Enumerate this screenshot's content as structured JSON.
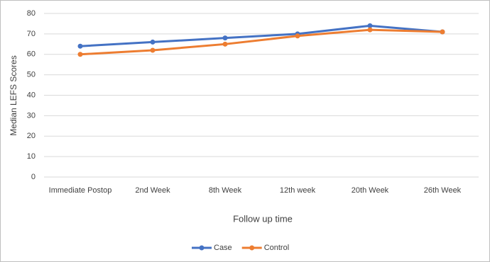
{
  "chart_data": {
    "type": "line",
    "x_label": "Follow up time",
    "y_label": "Median LEFS Scores",
    "categories": [
      "Immediate Postop",
      "2nd Week",
      "8th Week",
      "12th week",
      "20th Week",
      "26th Week"
    ],
    "series": [
      {
        "name": "Case",
        "color": "#4472c4",
        "values": [
          64,
          66,
          68,
          70,
          74,
          71
        ]
      },
      {
        "name": "Control",
        "color": "#ed7d31",
        "values": [
          60,
          62,
          65,
          69,
          72,
          71
        ]
      }
    ],
    "ylim": [
      0,
      80
    ],
    "yticks": [
      0,
      10,
      20,
      30,
      40,
      50,
      60,
      70,
      80
    ],
    "grid": true,
    "legend": "bottom"
  }
}
